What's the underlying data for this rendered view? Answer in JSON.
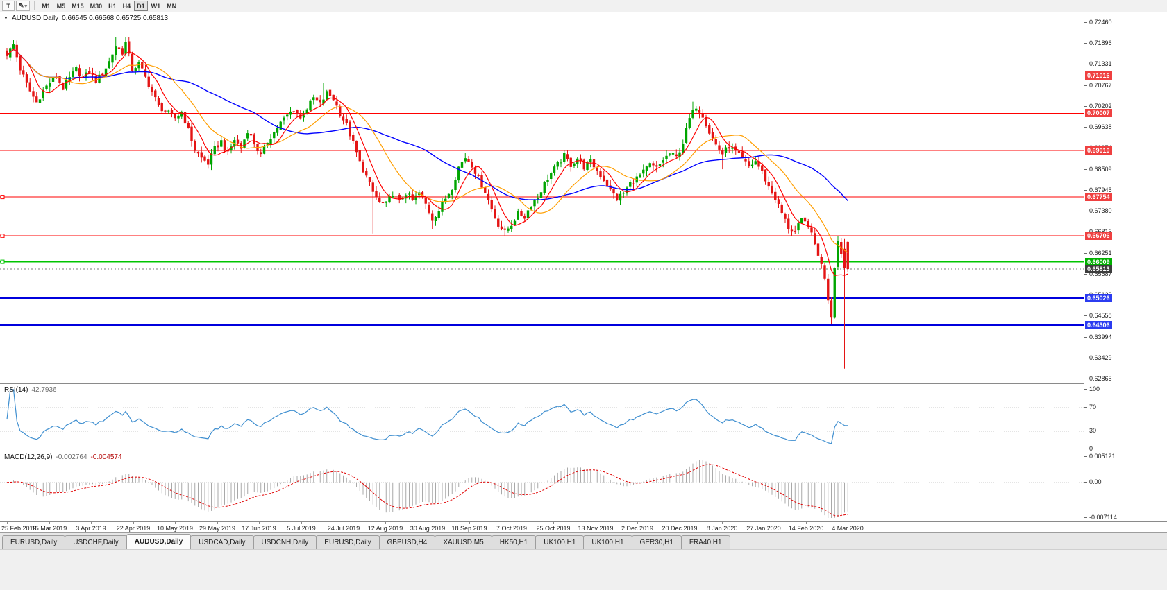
{
  "toolbar": {
    "text_tool_icon": "T",
    "drawing_tool_icon": "✎",
    "dropdown_icon": "▾",
    "timeframes": [
      "M1",
      "M5",
      "M15",
      "M30",
      "H1",
      "H4",
      "D1",
      "W1",
      "MN"
    ],
    "active_timeframe": "D1"
  },
  "chart": {
    "symbol": "AUDUSD,Daily",
    "ohlc": [
      "0.66545",
      "0.66568",
      "0.65725",
      "0.65813"
    ],
    "collapse_icon": "▼",
    "price_axis_labels": [
      "0.72460",
      "0.71896",
      "0.71331",
      "0.70767",
      "0.70202",
      "0.69638",
      "0.69074",
      "0.68509",
      "0.67945",
      "0.67380",
      "0.66816",
      "0.66251",
      "0.65687",
      "0.65123",
      "0.64558",
      "0.63994",
      "0.63429",
      "0.62865"
    ],
    "date_labels": [
      "25 Feb 2019",
      "15 Mar 2019",
      "3 Apr 2019",
      "22 Apr 2019",
      "10 May 2019",
      "29 May 2019",
      "17 Jun 2019",
      "5 Jul 2019",
      "24 Jul 2019",
      "12 Aug 2019",
      "30 Aug 2019",
      "18 Sep 2019",
      "7 Oct 2019",
      "25 Oct 2019",
      "13 Nov 2019",
      "2 Dec 2019",
      "20 Dec 2019",
      "8 Jan 2020",
      "27 Jan 2020",
      "14 Feb 2020",
      "4 Mar 2020"
    ],
    "levels": [
      {
        "label": "0.71016",
        "price": 0.71016,
        "line": "#ff0000",
        "tag": "#ef4040",
        "width": 1,
        "handle": false
      },
      {
        "label": "0.70007",
        "price": 0.70007,
        "line": "#ff0000",
        "tag": "#ef4040",
        "width": 1,
        "handle": false
      },
      {
        "label": "0.69010",
        "price": 0.6901,
        "line": "#ff0000",
        "tag": "#ef4040",
        "width": 1,
        "handle": false
      },
      {
        "label": "0.67754",
        "price": 0.67754,
        "line": "#ff0000",
        "tag": "#ef4040",
        "width": 1,
        "handle": true
      },
      {
        "label": "0.66706",
        "price": 0.66706,
        "line": "#ff0000",
        "tag": "#ef4040",
        "width": 1,
        "handle": true
      },
      {
        "label": "0.66009",
        "price": 0.66009,
        "line": "#00c400",
        "tag": "#00b000",
        "width": 2,
        "handle": true
      },
      {
        "label": "0.65026",
        "price": 0.65026,
        "line": "#0000dd",
        "tag": "#2b3cf0",
        "width": 2,
        "handle": false
      },
      {
        "label": "0.64306",
        "price": 0.64306,
        "line": "#0000dd",
        "tag": "#2b3cf0",
        "width": 2,
        "handle": false
      }
    ],
    "current": {
      "label": "0.65813",
      "price": 0.65813,
      "tag": "#3d3d3d"
    }
  },
  "rsi": {
    "name": "RSI(14)",
    "value": "42.7936",
    "period": 14,
    "axis_labels": [
      "100",
      "70",
      "30",
      "0"
    ],
    "axis_values": [
      100,
      70,
      30,
      0
    ],
    "level_lines": [
      70,
      30
    ],
    "line_color": "#3f8fd0"
  },
  "macd": {
    "name": "MACD(12,26,9)",
    "main_value": "-0.002764",
    "signal_value": "-0.004574",
    "fast": 12,
    "slow": 26,
    "signal": 9,
    "axis_labels": [
      "0.005121",
      "0.00",
      "-0.007114"
    ],
    "axis_values": [
      0.005121,
      0,
      -0.007114
    ],
    "hist_color": "#a9a9a9",
    "signal_color": "#e00000"
  },
  "tabs": [
    "EURUSD,Daily",
    "USDCHF,Daily",
    "AUDUSD,Daily",
    "USDCAD,Daily",
    "USDCNH,Daily",
    "EURUSD,Daily",
    "GBPUSD,H4",
    "XAUUSD,M5",
    "HK50,H1",
    "UK100,H1",
    "UK100,H1",
    "GER30,H1",
    "FRA40,H1"
  ],
  "active_tab_index": 2,
  "chart_data": {
    "type": "candlestick",
    "symbol": "AUDUSD",
    "timeframe": "Daily",
    "bars": 256,
    "price_min": 0.62865,
    "price_max": 0.7246,
    "noise": 0.0008,
    "wick": 0.0015,
    "ma_periods": {
      "fast": 7,
      "mid": 18,
      "slow": 45
    },
    "colors": {
      "up": "#00a500",
      "down": "#e41414",
      "ma_fast": "#ff0000",
      "ma_mid": "#ff9e00",
      "ma_slow": "#0000ff"
    },
    "close_anchors": [
      [
        0,
        0.716
      ],
      [
        2,
        0.7185
      ],
      [
        4,
        0.712
      ],
      [
        7,
        0.706
      ],
      [
        9,
        0.703
      ],
      [
        11,
        0.7062
      ],
      [
        13,
        0.7085
      ],
      [
        15,
        0.71
      ],
      [
        17,
        0.7068
      ],
      [
        19,
        0.7095
      ],
      [
        21,
        0.712
      ],
      [
        23,
        0.7095
      ],
      [
        25,
        0.7112
      ],
      [
        27,
        0.7088
      ],
      [
        29,
        0.7108
      ],
      [
        31,
        0.714
      ],
      [
        33,
        0.7182
      ],
      [
        35,
        0.7165
      ],
      [
        36,
        0.719
      ],
      [
        38,
        0.7118
      ],
      [
        40,
        0.7135
      ],
      [
        43,
        0.7078
      ],
      [
        46,
        0.702
      ],
      [
        49,
        0.7
      ],
      [
        51,
        0.6988
      ],
      [
        53,
        0.7005
      ],
      [
        55,
        0.6955
      ],
      [
        57,
        0.6902
      ],
      [
        59,
        0.688
      ],
      [
        61,
        0.6866
      ],
      [
        63,
        0.6905
      ],
      [
        65,
        0.6925
      ],
      [
        67,
        0.6892
      ],
      [
        69,
        0.693
      ],
      [
        71,
        0.6906
      ],
      [
        73,
        0.6955
      ],
      [
        75,
        0.692
      ],
      [
        77,
        0.6886
      ],
      [
        79,
        0.6925
      ],
      [
        81,
        0.695
      ],
      [
        83,
        0.6975
      ],
      [
        85,
        0.6995
      ],
      [
        87,
        0.7012
      ],
      [
        89,
        0.6986
      ],
      [
        91,
        0.7015
      ],
      [
        93,
        0.7042
      ],
      [
        95,
        0.7025
      ],
      [
        97,
        0.7055
      ],
      [
        99,
        0.704
      ],
      [
        101,
        0.7
      ],
      [
        103,
        0.6968
      ],
      [
        105,
        0.692
      ],
      [
        107,
        0.6868
      ],
      [
        109,
        0.683
      ],
      [
        111,
        0.6788
      ],
      [
        113,
        0.676
      ],
      [
        115,
        0.6756
      ],
      [
        117,
        0.6786
      ],
      [
        119,
        0.6762
      ],
      [
        121,
        0.6786
      ],
      [
        123,
        0.6766
      ],
      [
        125,
        0.6786
      ],
      [
        127,
        0.6756
      ],
      [
        129,
        0.6716
      ],
      [
        131,
        0.674
      ],
      [
        133,
        0.6772
      ],
      [
        135,
        0.6802
      ],
      [
        137,
        0.6856
      ],
      [
        139,
        0.6882
      ],
      [
        141,
        0.6862
      ],
      [
        143,
        0.6826
      ],
      [
        145,
        0.679
      ],
      [
        147,
        0.6742
      ],
      [
        149,
        0.6702
      ],
      [
        151,
        0.668
      ],
      [
        153,
        0.6702
      ],
      [
        155,
        0.673
      ],
      [
        157,
        0.6722
      ],
      [
        159,
        0.6756
      ],
      [
        161,
        0.6776
      ],
      [
        163,
        0.6812
      ],
      [
        165,
        0.684
      ],
      [
        167,
        0.6862
      ],
      [
        169,
        0.6886
      ],
      [
        171,
        0.6862
      ],
      [
        173,
        0.688
      ],
      [
        175,
        0.6856
      ],
      [
        177,
        0.687
      ],
      [
        179,
        0.6846
      ],
      [
        181,
        0.6822
      ],
      [
        183,
        0.6792
      ],
      [
        185,
        0.6772
      ],
      [
        187,
        0.6786
      ],
      [
        189,
        0.6812
      ],
      [
        191,
        0.6826
      ],
      [
        193,
        0.6842
      ],
      [
        195,
        0.6862
      ],
      [
        197,
        0.6852
      ],
      [
        199,
        0.6876
      ],
      [
        201,
        0.6892
      ],
      [
        203,
        0.6882
      ],
      [
        205,
        0.6922
      ],
      [
        207,
        0.6986
      ],
      [
        209,
        0.702
      ],
      [
        211,
        0.6996
      ],
      [
        213,
        0.695
      ],
      [
        215,
        0.6916
      ],
      [
        217,
        0.6892
      ],
      [
        219,
        0.6912
      ],
      [
        221,
        0.6896
      ],
      [
        223,
        0.6876
      ],
      [
        225,
        0.6856
      ],
      [
        227,
        0.6872
      ],
      [
        229,
        0.6842
      ],
      [
        231,
        0.6802
      ],
      [
        233,
        0.6772
      ],
      [
        235,
        0.6732
      ],
      [
        237,
        0.6692
      ],
      [
        239,
        0.6682
      ],
      [
        241,
        0.6712
      ],
      [
        243,
        0.67
      ],
      [
        244,
        0.6672
      ],
      [
        246,
        0.6622
      ],
      [
        248,
        0.656
      ],
      [
        249,
        0.6502
      ],
      [
        250,
        0.6456
      ],
      [
        251,
        0.6592
      ],
      [
        252,
        0.6656
      ],
      [
        253,
        0.6626
      ],
      [
        254,
        0.6584
      ],
      [
        255,
        0.65813
      ]
    ],
    "overrides": {
      "2": {
        "h": 0.7198
      },
      "33": {
        "h": 0.7206
      },
      "96": {
        "h": 0.7082
      },
      "111": {
        "l": 0.6677
      },
      "129": {
        "l": 0.6689
      },
      "151": {
        "l": 0.6671
      },
      "208": {
        "h": 0.7032
      },
      "217": {
        "l": 0.685
      },
      "250": {
        "l": 0.6434
      },
      "254": {
        "o": 0.6636,
        "h": 0.6662,
        "l": 0.6313,
        "c": 0.6584
      },
      "255": {
        "o": 0.66545,
        "h": 0.66568,
        "l": 0.65725,
        "c": 0.65813
      }
    }
  }
}
